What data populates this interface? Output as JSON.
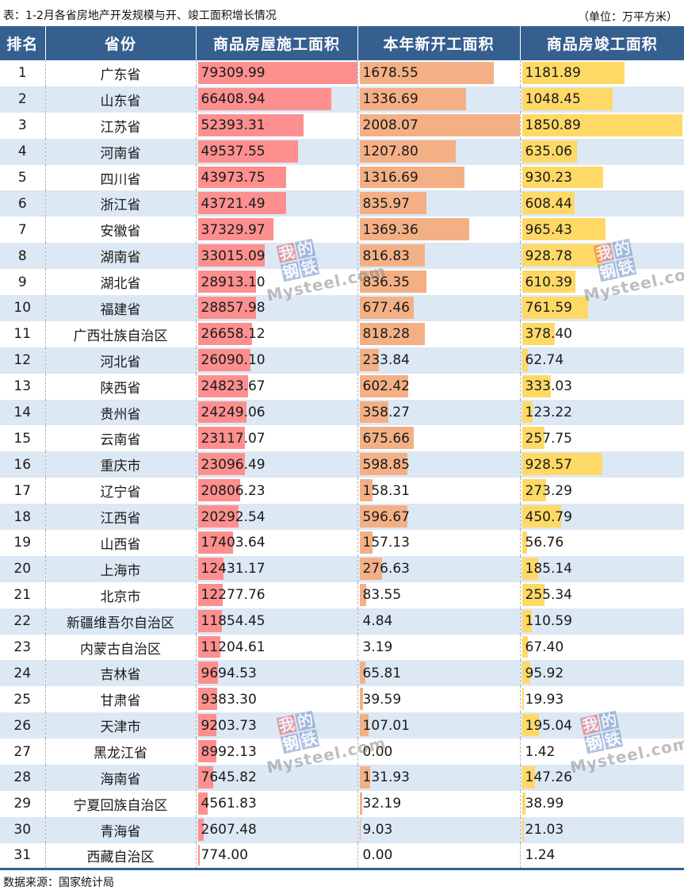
{
  "title": "表：1-2月各省房地产开发规模与开、竣工面积增长情况",
  "unit": "（单位：万平方米）",
  "source": "数据来源：国家统计局",
  "headers": {
    "rank": "排名",
    "province": "省份",
    "under_construction": "商品房屋施工面积",
    "new_starts": "本年新开工面积",
    "completed": "商品房竣工面积"
  },
  "colors": {
    "header_bg": "#355F8F",
    "stripe": "#DCE8F4",
    "bar_under_construction": "#FD8F8F",
    "bar_new_starts": "#F4B085",
    "bar_completed": "#FFD966"
  },
  "watermark": {
    "chars": [
      "我",
      "的",
      "钢",
      "铁"
    ],
    "site": "Mysteel.com"
  },
  "rows": [
    {
      "rank": "1",
      "province": "广东省",
      "under_construction": "79309.99",
      "new_starts": "1678.55",
      "completed": "1181.89"
    },
    {
      "rank": "2",
      "province": "山东省",
      "under_construction": "66408.94",
      "new_starts": "1336.69",
      "completed": "1048.45"
    },
    {
      "rank": "3",
      "province": "江苏省",
      "under_construction": "52393.31",
      "new_starts": "2008.07",
      "completed": "1850.89"
    },
    {
      "rank": "4",
      "province": "河南省",
      "under_construction": "49537.55",
      "new_starts": "1207.80",
      "completed": "635.06"
    },
    {
      "rank": "5",
      "province": "四川省",
      "under_construction": "43973.75",
      "new_starts": "1316.69",
      "completed": "930.23"
    },
    {
      "rank": "6",
      "province": "浙江省",
      "under_construction": "43721.49",
      "new_starts": "835.97",
      "completed": "608.44"
    },
    {
      "rank": "7",
      "province": "安徽省",
      "under_construction": "37329.97",
      "new_starts": "1369.36",
      "completed": "965.43"
    },
    {
      "rank": "8",
      "province": "湖南省",
      "under_construction": "33015.09",
      "new_starts": "816.83",
      "completed": "928.78"
    },
    {
      "rank": "9",
      "province": "湖北省",
      "under_construction": "28913.10",
      "new_starts": "836.35",
      "completed": "610.39"
    },
    {
      "rank": "10",
      "province": "福建省",
      "under_construction": "28857.98",
      "new_starts": "677.46",
      "completed": "761.59"
    },
    {
      "rank": "11",
      "province": "广西壮族自治区",
      "under_construction": "26658.12",
      "new_starts": "818.28",
      "completed": "378.40"
    },
    {
      "rank": "12",
      "province": "河北省",
      "under_construction": "26090.10",
      "new_starts": "233.84",
      "completed": "62.74"
    },
    {
      "rank": "13",
      "province": "陕西省",
      "under_construction": "24823.67",
      "new_starts": "602.42",
      "completed": "333.03"
    },
    {
      "rank": "14",
      "province": "贵州省",
      "under_construction": "24249.06",
      "new_starts": "358.27",
      "completed": "123.22"
    },
    {
      "rank": "15",
      "province": "云南省",
      "under_construction": "23117.07",
      "new_starts": "675.66",
      "completed": "257.75"
    },
    {
      "rank": "16",
      "province": "重庆市",
      "under_construction": "23096.49",
      "new_starts": "598.85",
      "completed": "928.57"
    },
    {
      "rank": "17",
      "province": "辽宁省",
      "under_construction": "20806.23",
      "new_starts": "158.31",
      "completed": "273.29"
    },
    {
      "rank": "18",
      "province": "江西省",
      "under_construction": "20292.54",
      "new_starts": "596.67",
      "completed": "450.79"
    },
    {
      "rank": "19",
      "province": "山西省",
      "under_construction": "17403.64",
      "new_starts": "157.13",
      "completed": "56.76"
    },
    {
      "rank": "20",
      "province": "上海市",
      "under_construction": "12431.17",
      "new_starts": "276.63",
      "completed": "185.14"
    },
    {
      "rank": "21",
      "province": "北京市",
      "under_construction": "12277.76",
      "new_starts": "83.55",
      "completed": "255.34"
    },
    {
      "rank": "22",
      "province": "新疆维吾尔自治区",
      "under_construction": "11854.45",
      "new_starts": "4.84",
      "completed": "110.59"
    },
    {
      "rank": "23",
      "province": "内蒙古自治区",
      "under_construction": "11204.61",
      "new_starts": "3.19",
      "completed": "67.40"
    },
    {
      "rank": "24",
      "province": "吉林省",
      "under_construction": "9694.53",
      "new_starts": "65.81",
      "completed": "95.92"
    },
    {
      "rank": "25",
      "province": "甘肃省",
      "under_construction": "9383.30",
      "new_starts": "39.59",
      "completed": "19.93"
    },
    {
      "rank": "26",
      "province": "天津市",
      "under_construction": "9203.73",
      "new_starts": "107.01",
      "completed": "195.04"
    },
    {
      "rank": "27",
      "province": "黑龙江省",
      "under_construction": "8992.13",
      "new_starts": "0.00",
      "completed": "1.42"
    },
    {
      "rank": "28",
      "province": "海南省",
      "under_construction": "7645.82",
      "new_starts": "131.93",
      "completed": "147.26"
    },
    {
      "rank": "29",
      "province": "宁夏回族自治区",
      "under_construction": "4561.83",
      "new_starts": "32.19",
      "completed": "38.99"
    },
    {
      "rank": "30",
      "province": "青海省",
      "under_construction": "2607.48",
      "new_starts": "9.03",
      "completed": "21.03"
    },
    {
      "rank": "31",
      "province": "西藏自治区",
      "under_construction": "774.00",
      "new_starts": "0.00",
      "completed": "1.24"
    }
  ]
}
